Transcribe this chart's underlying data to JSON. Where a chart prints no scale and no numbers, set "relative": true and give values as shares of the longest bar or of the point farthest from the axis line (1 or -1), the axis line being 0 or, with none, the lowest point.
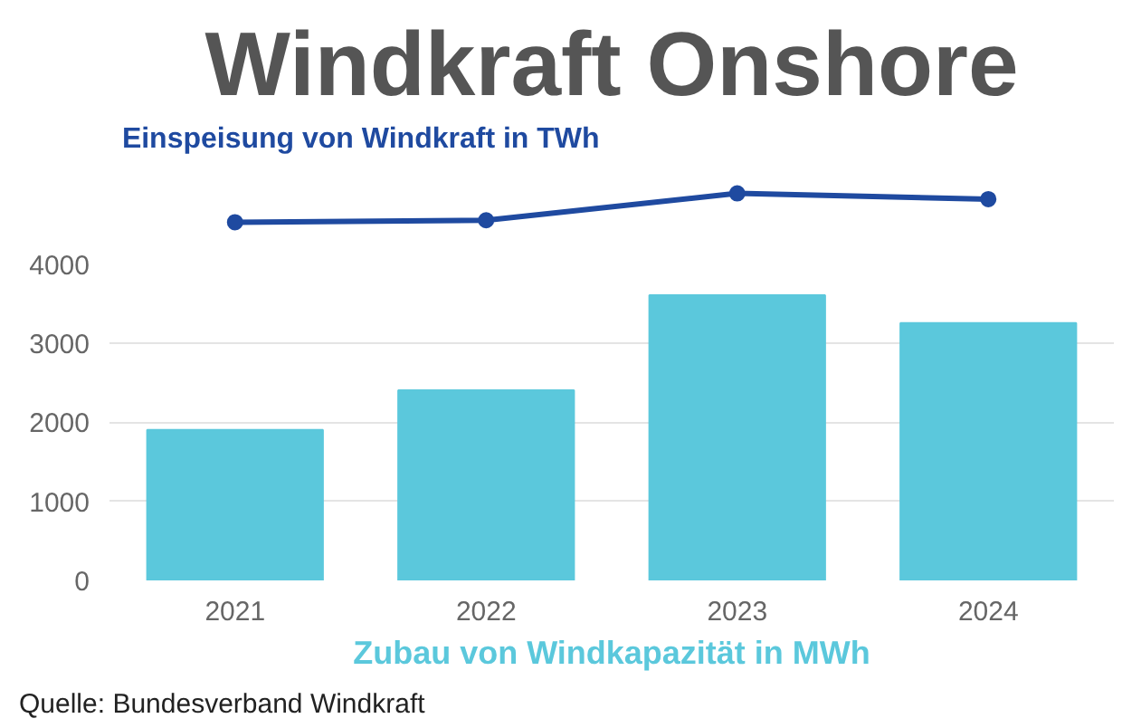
{
  "chart_data": [
    {
      "type": "line",
      "title": "Windkraft Onshore",
      "categories": [
        null,
        null,
        null,
        null
      ],
      "relative": true,
      "tick_labels": false,
      "marker": "circle",
      "grid": false,
      "series": [
        {
          "name": "Einspeisung von Windkraft in TWh",
          "color": "#1f4aa0",
          "values": [
            0,
            0.07,
            1,
            0.8
          ]
        }
      ]
    },
    {
      "type": "bar",
      "categories": [
        "2021",
        "2022",
        "2023",
        "2024"
      ],
      "values": [
        1900,
        2400,
        3600,
        3250
      ],
      "color": "#5bc8dc",
      "ylim": [
        0,
        4000
      ],
      "yticks": [
        0,
        1000,
        2000,
        3000,
        4000
      ],
      "grid": "y",
      "xlabel": "Zubau von Windkapazität in MWh",
      "annotations": [
        "Quelle: Bundesverband Windkraft"
      ]
    }
  ]
}
